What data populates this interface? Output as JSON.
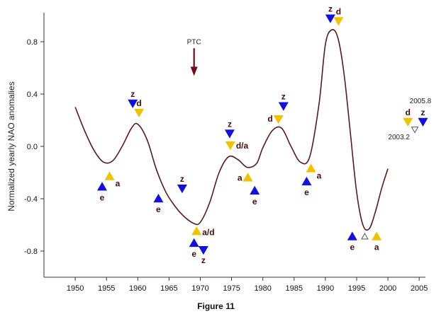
{
  "chart_data": {
    "type": "line",
    "title": "",
    "xlabel": "",
    "ylabel": "Normalized yearly NAO anomalies",
    "caption": "Figure 11",
    "xlim": [
      1945,
      2006
    ],
    "ylim": [
      -1.0,
      1.0
    ],
    "x_ticks": [
      1950,
      1955,
      1960,
      1965,
      1970,
      1975,
      1980,
      1985,
      1990,
      1995,
      2000,
      2005
    ],
    "y_ticks": [
      -0.8,
      -0.4,
      0.0,
      0.4,
      0.8
    ],
    "y_tick_labels": [
      "-0.8",
      "-0.4",
      "0.0",
      "0.4",
      "0.8"
    ],
    "grid": false,
    "colors": {
      "curve": "#5a1a1a",
      "blue": "#1010e0",
      "yellow": "#f2c200",
      "arrow": "#6b0f1a",
      "label": "#4a0a0a"
    },
    "series": [
      {
        "x": [
          1950,
          1951.5,
          1953,
          1954.5,
          1956,
          1957.5,
          1959,
          1960,
          1961.5,
          1963,
          1964.5,
          1966,
          1967.5,
          1969,
          1970,
          1971.5,
          1973,
          1974.5,
          1976,
          1977.5,
          1979,
          1980,
          1981.5,
          1983,
          1984.5,
          1986,
          1987.5,
          1989,
          1990,
          1991,
          1992,
          1993,
          1994,
          1995,
          1996,
          1997,
          1998,
          1999,
          2000
        ],
        "values": [
          0.3,
          0.12,
          -0.03,
          -0.12,
          -0.11,
          0.0,
          0.14,
          0.17,
          0.05,
          -0.18,
          -0.35,
          -0.46,
          -0.54,
          -0.59,
          -0.58,
          -0.43,
          -0.2,
          -0.08,
          -0.1,
          -0.16,
          -0.13,
          -0.01,
          0.12,
          0.14,
          0.0,
          -0.12,
          -0.08,
          0.33,
          0.78,
          0.89,
          0.83,
          0.55,
          0.1,
          -0.35,
          -0.6,
          -0.63,
          -0.5,
          -0.32,
          -0.17
        ]
      }
    ],
    "markers": [
      {
        "x": 1954.3,
        "y": -0.31,
        "dir": "up",
        "color": "blue",
        "label": "e",
        "label_pos": "below"
      },
      {
        "x": 1955.5,
        "y": -0.23,
        "dir": "up",
        "color": "yellow",
        "label": "a",
        "label_pos": "right-below"
      },
      {
        "x": 1959.2,
        "y": 0.33,
        "dir": "down",
        "color": "blue",
        "label": "z",
        "label_pos": "above"
      },
      {
        "x": 1960.2,
        "y": 0.26,
        "dir": "down",
        "color": "yellow",
        "label": "d",
        "label_pos": "above"
      },
      {
        "x": 1963.3,
        "y": -0.4,
        "dir": "up",
        "color": "blue",
        "label": "e",
        "label_pos": "below"
      },
      {
        "x": 1967.1,
        "y": -0.32,
        "dir": "down",
        "color": "blue",
        "label": "z",
        "label_pos": "above"
      },
      {
        "x": 1969.4,
        "y": -0.65,
        "dir": "up",
        "color": "yellow",
        "label": "a/d",
        "label_pos": "right"
      },
      {
        "x": 1969.0,
        "y": -0.74,
        "dir": "up",
        "color": "blue",
        "label": "e",
        "label_pos": "below"
      },
      {
        "x": 1970.5,
        "y": -0.79,
        "dir": "down",
        "color": "blue",
        "label": "z",
        "label_pos": "below"
      },
      {
        "x": 1974.7,
        "y": 0.1,
        "dir": "down",
        "color": "blue",
        "label": "z",
        "label_pos": "above"
      },
      {
        "x": 1974.8,
        "y": 0.01,
        "dir": "down",
        "color": "yellow",
        "label": "d/a",
        "label_pos": "right"
      },
      {
        "x": 1977.6,
        "y": -0.24,
        "dir": "up",
        "color": "yellow",
        "label": "a",
        "label_pos": "left"
      },
      {
        "x": 1978.7,
        "y": -0.34,
        "dir": "up",
        "color": "blue",
        "label": "e",
        "label_pos": "below"
      },
      {
        "x": 1982.5,
        "y": 0.21,
        "dir": "down",
        "color": "yellow",
        "label": "d",
        "label_pos": "left"
      },
      {
        "x": 1983.3,
        "y": 0.31,
        "dir": "down",
        "color": "blue",
        "label": "z",
        "label_pos": "above"
      },
      {
        "x": 1987.0,
        "y": -0.27,
        "dir": "up",
        "color": "blue",
        "label": "e",
        "label_pos": "below"
      },
      {
        "x": 1987.7,
        "y": -0.17,
        "dir": "up",
        "color": "yellow",
        "label": "a",
        "label_pos": "right-below"
      },
      {
        "x": 1990.8,
        "y": 0.98,
        "dir": "down",
        "color": "blue",
        "label": "z",
        "label_pos": "above"
      },
      {
        "x": 1992.1,
        "y": 0.96,
        "dir": "down",
        "color": "yellow",
        "label": "d",
        "label_pos": "above"
      },
      {
        "x": 1994.3,
        "y": -0.69,
        "dir": "up",
        "color": "blue",
        "label": "e",
        "label_pos": "below"
      },
      {
        "x": 1996.3,
        "y": -0.69,
        "dir": "up",
        "color": "hollow",
        "label": "",
        "label_pos": "none"
      },
      {
        "x": 1998.2,
        "y": -0.69,
        "dir": "up",
        "color": "yellow",
        "label": "a",
        "label_pos": "below"
      },
      {
        "x": 2003.2,
        "y": 0.19,
        "dir": "down",
        "color": "yellow",
        "label": "d",
        "label_pos": "above"
      },
      {
        "x": 2004.3,
        "y": 0.13,
        "dir": "down",
        "color": "hollow",
        "label": "2003.2",
        "label_pos": "left-below"
      },
      {
        "x": 2005.6,
        "y": 0.19,
        "dir": "down",
        "color": "blue",
        "label": "z",
        "label_pos": "above"
      }
    ],
    "annotations": [
      {
        "text": "2005.8",
        "x": 2005.2,
        "y": 0.33
      }
    ],
    "ptc": {
      "label": "PTC",
      "x": 1969,
      "y_top": 0.75,
      "y_bottom": 0.56
    }
  }
}
